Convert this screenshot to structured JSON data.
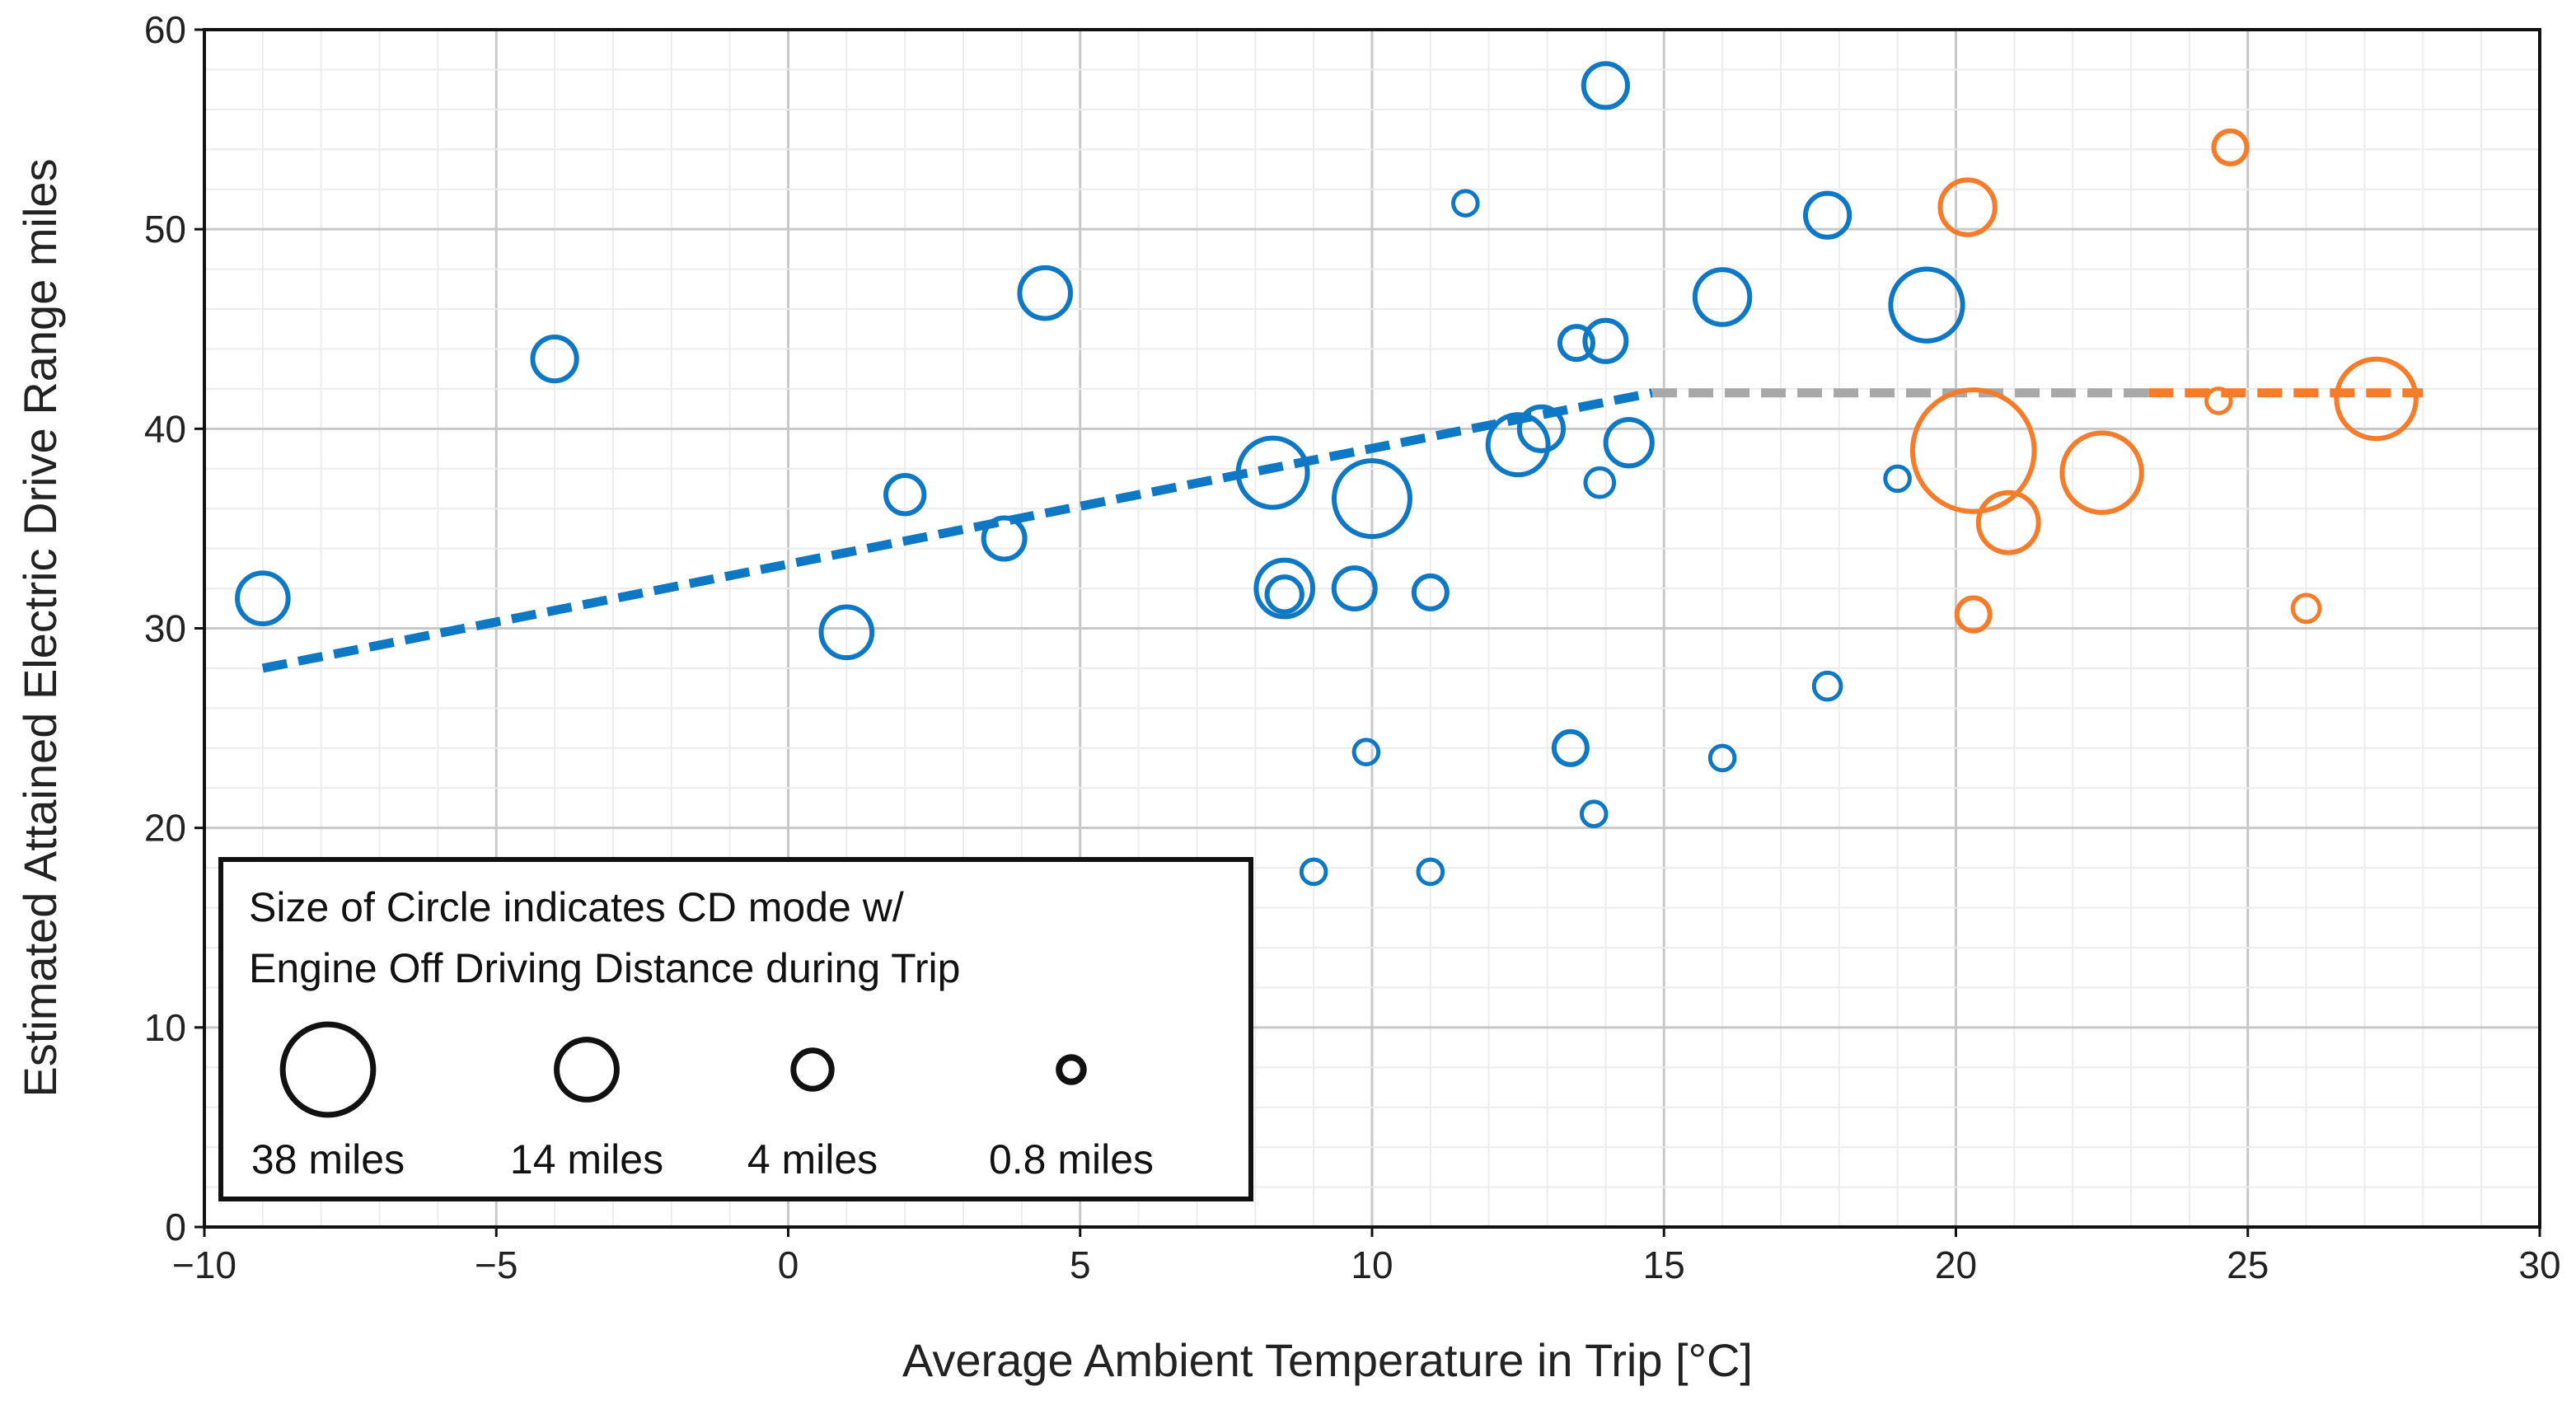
{
  "chart_data": {
    "type": "scatter",
    "xlabel": "Average Ambient Temperature in Trip [°C]",
    "ylabel": "Estimated Attained Electric Drive Range miles",
    "xlim": [
      -10,
      30
    ],
    "ylim": [
      0,
      60
    ],
    "x_ticks": [
      -10,
      -5,
      0,
      5,
      10,
      15,
      20,
      25,
      30
    ],
    "y_ticks": [
      0,
      10,
      20,
      30,
      40,
      50,
      60
    ],
    "x_tick_labels": [
      "−10",
      "−5",
      "0",
      "5",
      "10",
      "15",
      "20",
      "25",
      "30"
    ],
    "y_tick_labels": [
      "0",
      "10",
      "20",
      "30",
      "40",
      "50",
      "60"
    ],
    "grid": true,
    "colors": {
      "blue": "#0f78c4",
      "orange": "#f57c2b",
      "gray": "#a8a8a8",
      "legend": "#111111"
    },
    "series": [
      {
        "name": "blue",
        "color": "#0f78c4",
        "points": [
          {
            "x": -9.0,
            "y": 31.5,
            "miles": 9
          },
          {
            "x": -4.0,
            "y": 43.5,
            "miles": 6
          },
          {
            "x": 1.0,
            "y": 29.8,
            "miles": 9
          },
          {
            "x": 2.0,
            "y": 36.7,
            "miles": 4
          },
          {
            "x": 3.7,
            "y": 34.5,
            "miles": 5
          },
          {
            "x": 4.4,
            "y": 46.8,
            "miles": 9
          },
          {
            "x": 8.3,
            "y": 37.8,
            "miles": 20
          },
          {
            "x": 8.5,
            "y": 32.0,
            "miles": 12
          },
          {
            "x": 8.5,
            "y": 31.7,
            "miles": 3
          },
          {
            "x": 9.0,
            "y": 17.8,
            "miles": 0.8
          },
          {
            "x": 9.7,
            "y": 32.0,
            "miles": 5
          },
          {
            "x": 9.9,
            "y": 23.8,
            "miles": 0.8
          },
          {
            "x": 10.0,
            "y": 36.5,
            "miles": 25
          },
          {
            "x": 11.0,
            "y": 31.8,
            "miles": 2.5
          },
          {
            "x": 11.0,
            "y": 17.8,
            "miles": 0.8
          },
          {
            "x": 11.6,
            "y": 51.3,
            "miles": 0.8
          },
          {
            "x": 12.5,
            "y": 39.2,
            "miles": 14
          },
          {
            "x": 12.9,
            "y": 40.0,
            "miles": 6
          },
          {
            "x": 13.4,
            "y": 24.0,
            "miles": 2.5
          },
          {
            "x": 13.5,
            "y": 44.3,
            "miles": 2.5
          },
          {
            "x": 13.8,
            "y": 20.7,
            "miles": 0.8
          },
          {
            "x": 13.9,
            "y": 37.3,
            "miles": 1.5
          },
          {
            "x": 14.0,
            "y": 57.2,
            "miles": 6
          },
          {
            "x": 14.0,
            "y": 44.4,
            "miles": 5
          },
          {
            "x": 14.4,
            "y": 39.3,
            "miles": 7
          },
          {
            "x": 16.0,
            "y": 46.6,
            "miles": 11
          },
          {
            "x": 16.0,
            "y": 23.5,
            "miles": 0.8
          },
          {
            "x": 17.8,
            "y": 50.7,
            "miles": 6
          },
          {
            "x": 17.8,
            "y": 27.1,
            "miles": 1.2
          },
          {
            "x": 19.0,
            "y": 37.5,
            "miles": 0.8
          },
          {
            "x": 19.5,
            "y": 46.2,
            "miles": 22
          }
        ]
      },
      {
        "name": "orange",
        "color": "#f57c2b",
        "points": [
          {
            "x": 20.2,
            "y": 51.1,
            "miles": 11
          },
          {
            "x": 20.3,
            "y": 38.9,
            "miles": 75
          },
          {
            "x": 20.3,
            "y": 30.7,
            "miles": 2.5
          },
          {
            "x": 20.9,
            "y": 35.3,
            "miles": 14
          },
          {
            "x": 22.5,
            "y": 37.8,
            "miles": 28
          },
          {
            "x": 24.5,
            "y": 41.4,
            "miles": 0.8
          },
          {
            "x": 24.7,
            "y": 54.1,
            "miles": 2.5
          },
          {
            "x": 26.0,
            "y": 31.0,
            "miles": 1.2
          },
          {
            "x": 27.2,
            "y": 41.5,
            "miles": 28
          }
        ]
      }
    ],
    "trend_lines": [
      {
        "name": "blue-trend",
        "color": "#0f78c4",
        "x": [
          -9,
          14.8
        ],
        "y": [
          28.0,
          41.8
        ]
      },
      {
        "name": "gray-trend",
        "color": "#a8a8a8",
        "x": [
          14.8,
          23.3
        ],
        "y": [
          41.8,
          41.8
        ]
      },
      {
        "name": "orange-trend",
        "color": "#f57c2b",
        "x": [
          23.3,
          28.0
        ],
        "y": [
          41.8,
          41.8
        ]
      }
    ],
    "legend": {
      "placement": "bottom-left",
      "line1": "Size of Circle indicates CD mode w/",
      "line2": "Engine Off Driving Distance during Trip",
      "entries": [
        {
          "label": "38 miles",
          "miles": 38
        },
        {
          "label": "14 miles",
          "miles": 14
        },
        {
          "label": "4 miles",
          "miles": 4
        },
        {
          "label": "0.8 miles",
          "miles": 0.8
        }
      ]
    }
  }
}
